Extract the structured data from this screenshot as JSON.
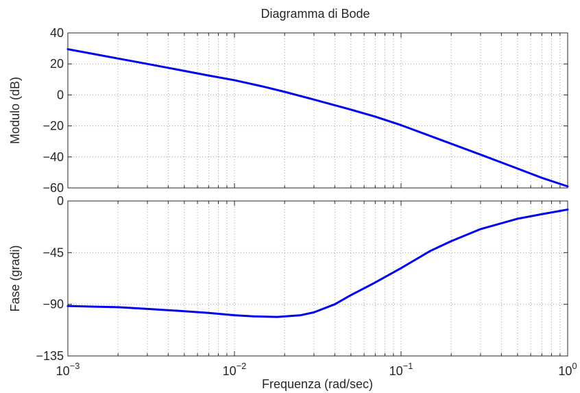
{
  "chart_data": [
    {
      "type": "line",
      "title": "Diagramma di Bode",
      "xlabel": "",
      "ylabel": "Modulo (dB)",
      "x_scale": "log",
      "xlim": [
        0.001,
        1
      ],
      "ylim": [
        -60,
        40
      ],
      "y_ticks": [
        "−60",
        "−40",
        "−20",
        "0",
        "20",
        "40"
      ],
      "grid": true,
      "series": [
        {
          "color": "#0000ee",
          "x": [
            0.001,
            0.002,
            0.003,
            0.005,
            0.007,
            0.01,
            0.015,
            0.02,
            0.03,
            0.05,
            0.07,
            0.1,
            0.15,
            0.2,
            0.3,
            0.5,
            0.7,
            1.0
          ],
          "y": [
            29.5,
            23.5,
            20.0,
            15.5,
            12.5,
            9.5,
            5.3,
            2.0,
            -3.0,
            -9.5,
            -14.0,
            -19.5,
            -26.5,
            -31.5,
            -38.5,
            -47.5,
            -53.5,
            -59.0
          ]
        }
      ]
    },
    {
      "type": "line",
      "xlabel": "Frequenza (rad/sec)",
      "ylabel": "Fase (gradi)",
      "x_scale": "log",
      "xlim": [
        0.001,
        1
      ],
      "ylim": [
        -135,
        0
      ],
      "y_ticks": [
        "−135",
        "−90",
        "−45",
        "0"
      ],
      "x_ticks": [
        {
          "base": "10",
          "exp": "−3"
        },
        {
          "base": "10",
          "exp": "−2"
        },
        {
          "base": "10",
          "exp": "−1"
        },
        {
          "base": "10",
          "exp": "0"
        }
      ],
      "grid": true,
      "series": [
        {
          "color": "#0000ee",
          "x": [
            0.001,
            0.002,
            0.003,
            0.005,
            0.007,
            0.01,
            0.013,
            0.018,
            0.025,
            0.03,
            0.04,
            0.05,
            0.07,
            0.1,
            0.15,
            0.2,
            0.3,
            0.5,
            0.7,
            1.0
          ],
          "y": [
            -91.5,
            -92.5,
            -94.0,
            -96.0,
            -97.5,
            -99.5,
            -100.5,
            -101.0,
            -99.5,
            -97.0,
            -90.0,
            -82.0,
            -71.0,
            -58.5,
            -43.5,
            -35.0,
            -24.5,
            -15.5,
            -11.5,
            -7.5
          ]
        }
      ]
    }
  ]
}
